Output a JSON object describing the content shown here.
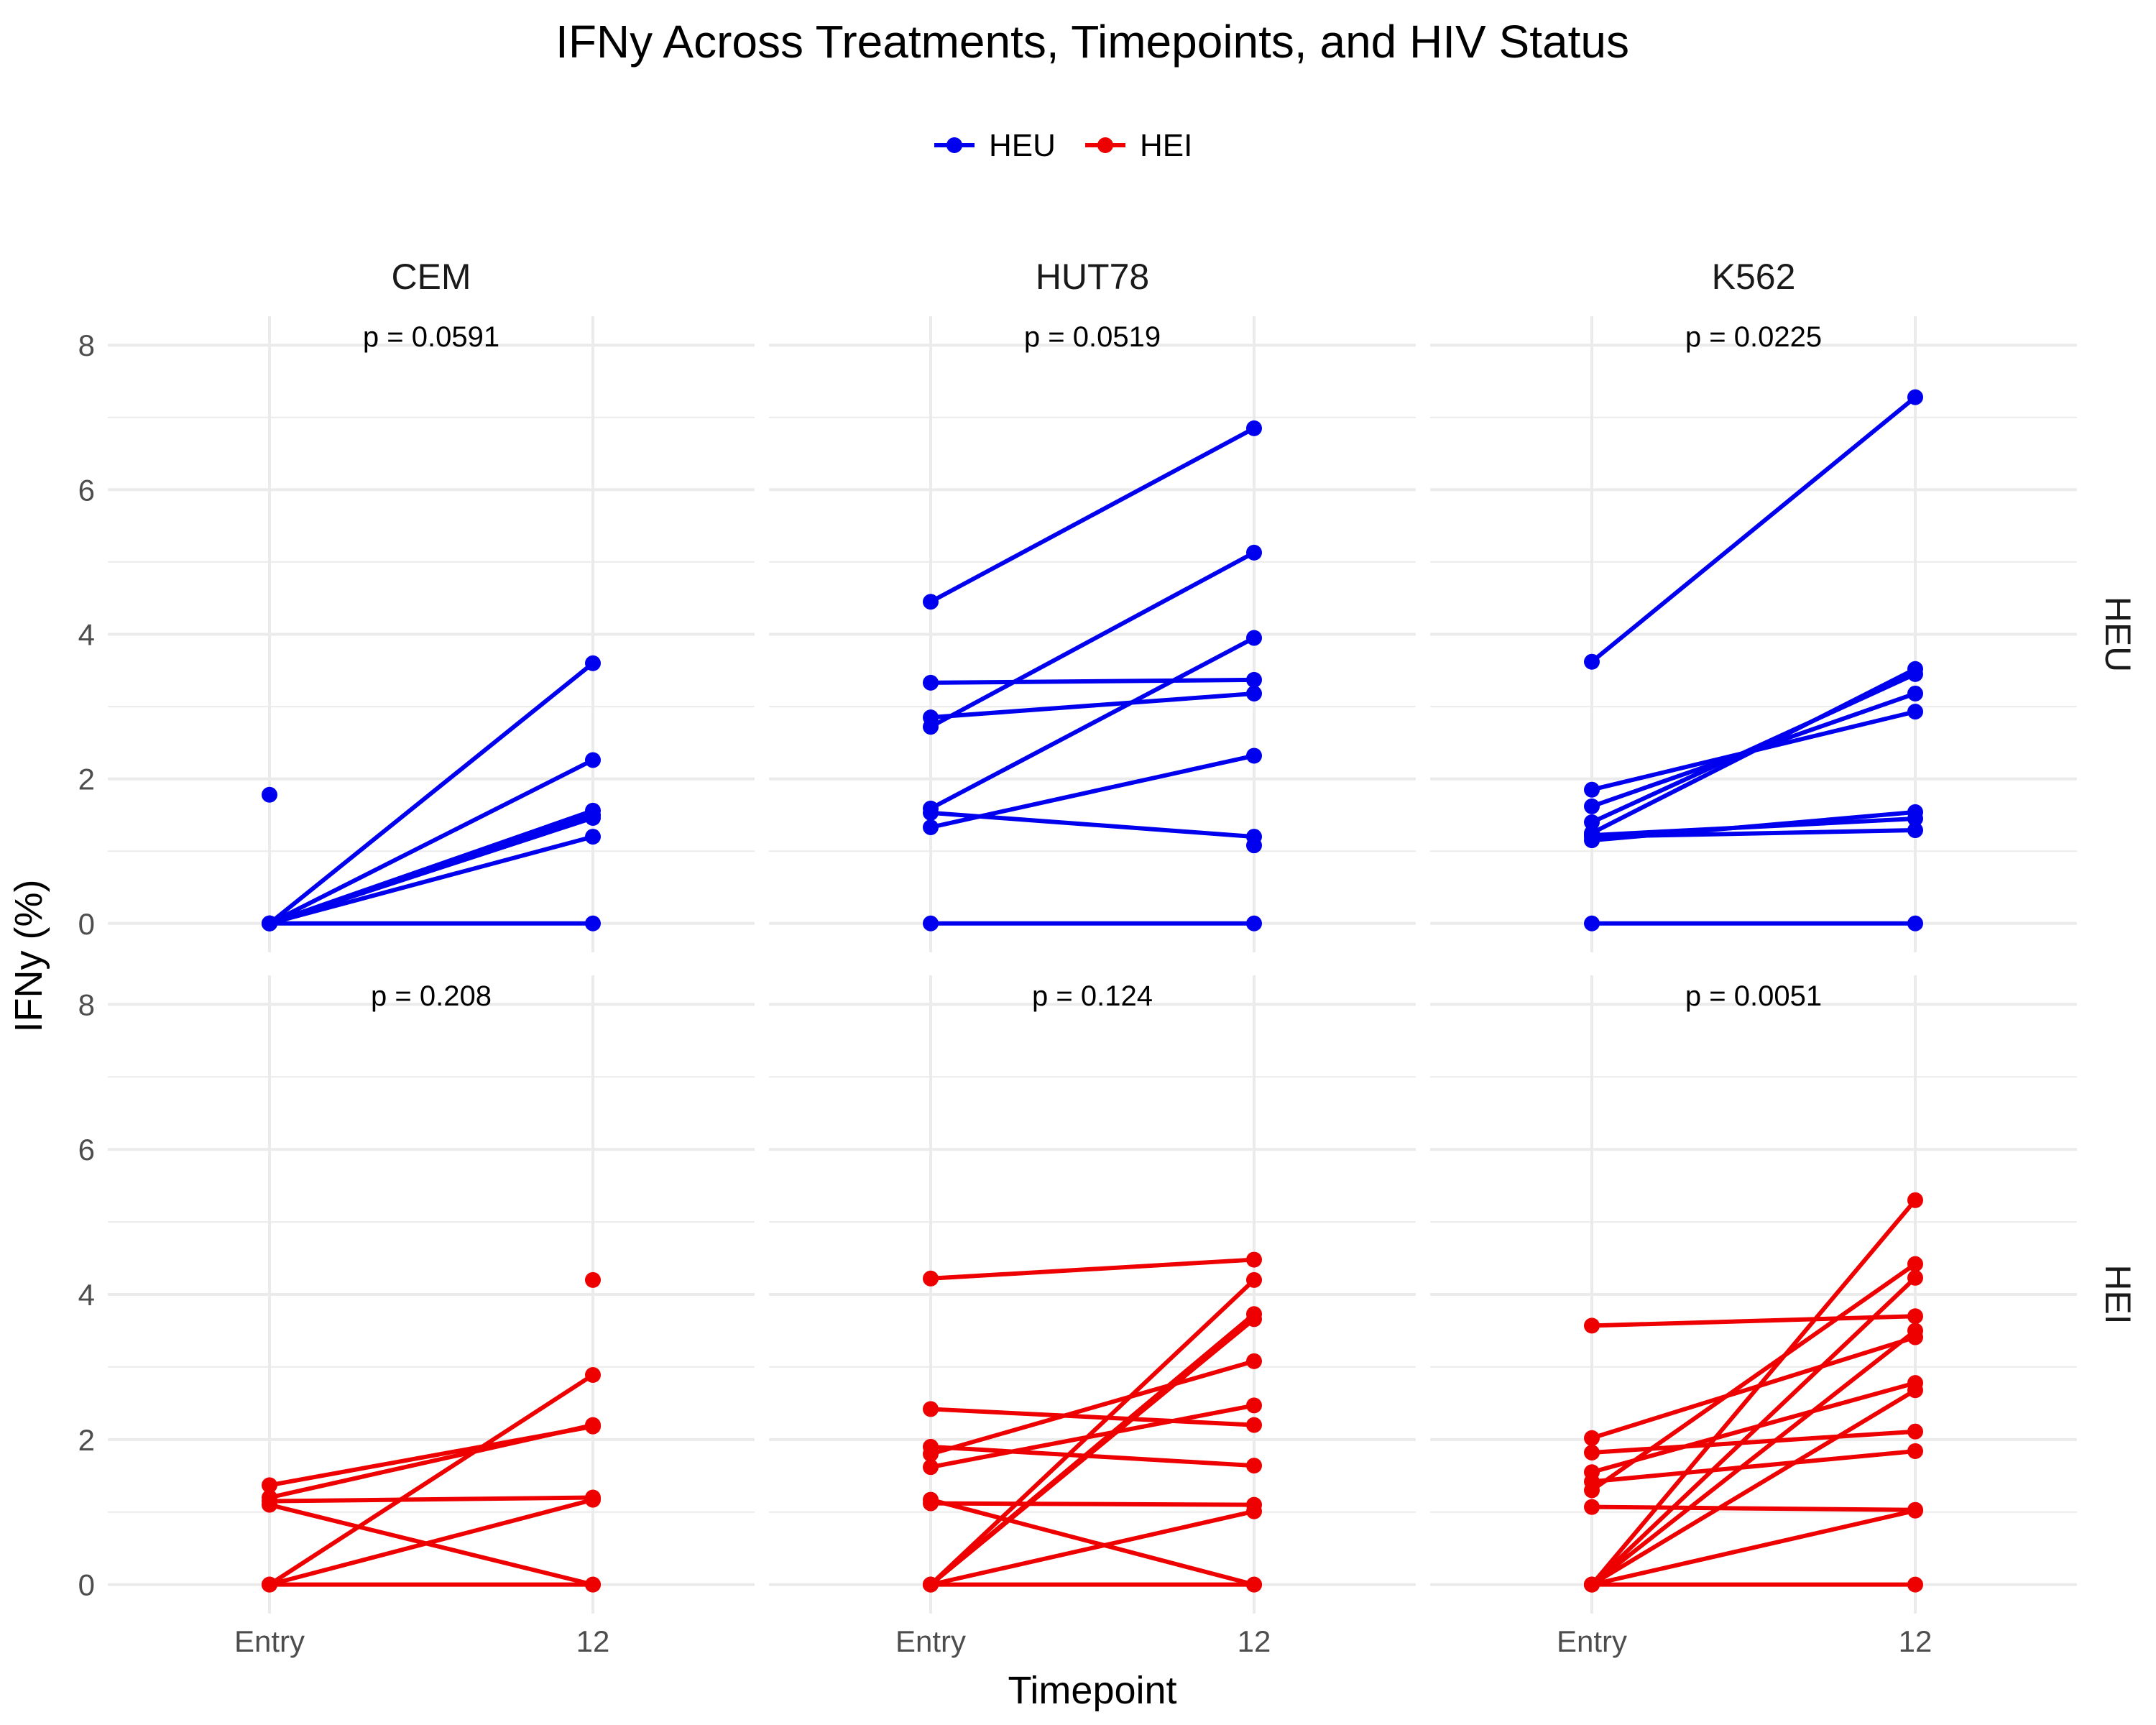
{
  "chart_data": {
    "type": "line",
    "title": "IFNy Across Treatments, Timepoints, and HIV Status",
    "xlabel": "Timepoint",
    "ylabel": "IFNy (%)",
    "x_categories": [
      "Entry",
      "12"
    ],
    "ylim": [
      -0.4,
      8.4
    ],
    "yticks": [
      0,
      2,
      4,
      6,
      8
    ],
    "grid": true,
    "legend": {
      "position": "top",
      "entries": [
        {
          "name": "HEU",
          "color": "#0000ee"
        },
        {
          "name": "HEI",
          "color": "#ee0000"
        }
      ]
    },
    "columns": [
      "CEM",
      "HUT78",
      "K562"
    ],
    "rows": [
      {
        "name": "HEU",
        "color": "#0000ee"
      },
      {
        "name": "HEI",
        "color": "#ee0000"
      }
    ],
    "panels": [
      {
        "column": "CEM",
        "row": "HEU",
        "p_label": "p = 0.0591",
        "pairs": [
          [
            0,
            3.6
          ],
          [
            0,
            2.26
          ],
          [
            0,
            1.56
          ],
          [
            0,
            1.5
          ],
          [
            0,
            1.46
          ],
          [
            0,
            1.2
          ],
          [
            0,
            0
          ]
        ],
        "single_points": [
          [
            0,
            1.78
          ]
        ]
      },
      {
        "column": "HUT78",
        "row": "HEU",
        "p_label": "p = 0.0519",
        "pairs": [
          [
            4.45,
            6.85
          ],
          [
            2.85,
            3.18
          ],
          [
            3.33,
            3.37
          ],
          [
            2.72,
            5.13
          ],
          [
            1.59,
            3.95
          ],
          [
            1.33,
            2.32
          ],
          [
            1.53,
            1.2
          ],
          [
            0,
            0
          ]
        ],
        "single_points": [
          [
            1,
            1.08
          ]
        ]
      },
      {
        "column": "K562",
        "row": "HEU",
        "p_label": "p = 0.0225",
        "pairs": [
          [
            3.62,
            7.28
          ],
          [
            1.85,
            2.93
          ],
          [
            1.62,
            3.18
          ],
          [
            1.4,
            3.45
          ],
          [
            1.25,
            3.52
          ],
          [
            1.15,
            1.54
          ],
          [
            1.22,
            1.45
          ],
          [
            1.2,
            1.29
          ],
          [
            0,
            0
          ]
        ],
        "single_points": []
      },
      {
        "column": "CEM",
        "row": "HEI",
        "p_label": "p = 0.208",
        "pairs": [
          [
            1.37,
            2.18
          ],
          [
            1.2,
            2.2
          ],
          [
            1.1,
            0
          ],
          [
            1.15,
            1.2
          ],
          [
            0,
            2.89
          ],
          [
            0,
            1.17
          ],
          [
            0,
            0
          ]
        ],
        "single_points": [
          [
            1,
            4.2
          ]
        ]
      },
      {
        "column": "HUT78",
        "row": "HEI",
        "p_label": "p = 0.124",
        "pairs": [
          [
            4.22,
            4.48
          ],
          [
            2.42,
            2.2
          ],
          [
            1.9,
            1.64
          ],
          [
            1.8,
            3.08
          ],
          [
            1.62,
            2.47
          ],
          [
            1.17,
            0
          ],
          [
            1.12,
            1.1
          ],
          [
            0,
            4.2
          ],
          [
            0,
            3.73
          ],
          [
            0,
            3.66
          ],
          [
            0,
            1.01
          ],
          [
            0,
            0
          ]
        ],
        "single_points": []
      },
      {
        "column": "K562",
        "row": "HEI",
        "p_label": "p = 0.0051",
        "pairs": [
          [
            3.57,
            3.7
          ],
          [
            2.02,
            3.41
          ],
          [
            1.82,
            2.11
          ],
          [
            1.55,
            2.78
          ],
          [
            1.42,
            1.84
          ],
          [
            1.3,
            4.42
          ],
          [
            1.07,
            1.03
          ],
          [
            0,
            5.3
          ],
          [
            0,
            4.23
          ],
          [
            0,
            3.5
          ],
          [
            0,
            2.68
          ],
          [
            0,
            1.02
          ],
          [
            0,
            0
          ]
        ],
        "single_points": []
      }
    ]
  }
}
